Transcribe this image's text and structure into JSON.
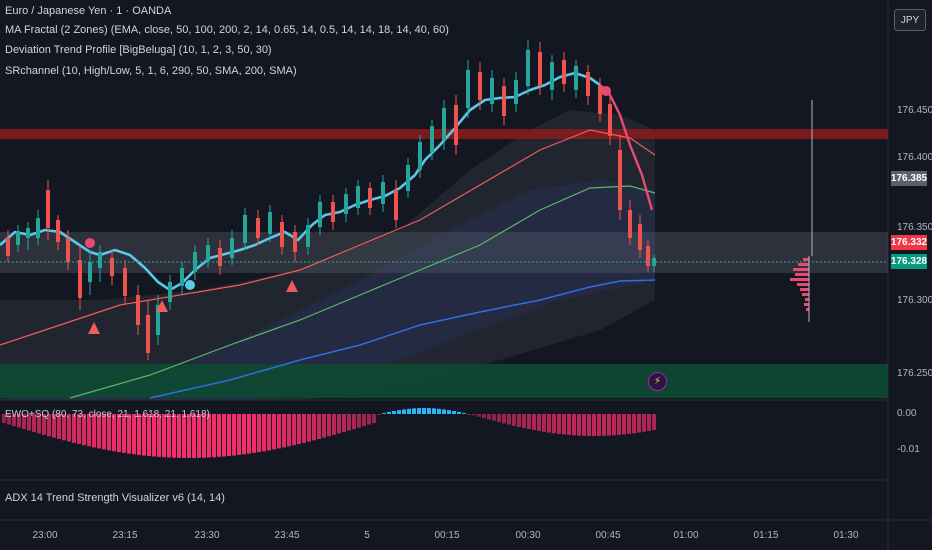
{
  "legend": {
    "symbol": "Euro / Japanese Yen · 1 · OANDA",
    "ind1": "MA Fractal (2 Zones) (EMA, close, 50, 100, 200, 2, 14, 0.65, 14, 0.5, 14, 14, 18, 14, 40, 60)",
    "ind2": "Deviation Trend Profile [BigBeluga] (10, 1, 2, 3, 50, 30)",
    "ind3": "SRchannel (10, High/Low, 5, 1, 6, 290, 50, SMA, 200, SMA)",
    "ind4": "EWO+SQ (80, 73, close, 21, 1.618, 21, 1.618)",
    "ind5": "ADX 14 Trend Strength Visualizer v6 (14, 14)"
  },
  "currency_button": "JPY",
  "price_axis": [
    "176.450",
    "176.400",
    "176.350",
    "176.300",
    "176.250"
  ],
  "price_tags": {
    "grey": "176.385",
    "red": "176.332",
    "green": "176.328"
  },
  "osc_axis": [
    "0.00",
    "-0.01"
  ],
  "time_axis": [
    "23:00",
    "23:15",
    "23:30",
    "23:45",
    "5",
    "00:15",
    "00:30",
    "00:45",
    "01:00",
    "01:15",
    "01:30"
  ],
  "colors": {
    "background": "#131722",
    "up_candle": "#26a69a",
    "down_candle": "#ef5350",
    "fast_ma": "#5ac8e8",
    "ma_down": "#e94a73",
    "ema50": "#f05b5b",
    "ema100": "#5bb866",
    "ema200": "#2f6fe0",
    "resistance_zone": "#8b1c1c",
    "support_zone": "#0d4a33",
    "mid_zone": "#5c606b",
    "osc_pos": "#29b6f6",
    "osc_neg": "#ff2d6f"
  },
  "icons": {
    "bolt": "⚡",
    "up_marker": "triangle-up",
    "pivot_marker": "circle"
  }
}
